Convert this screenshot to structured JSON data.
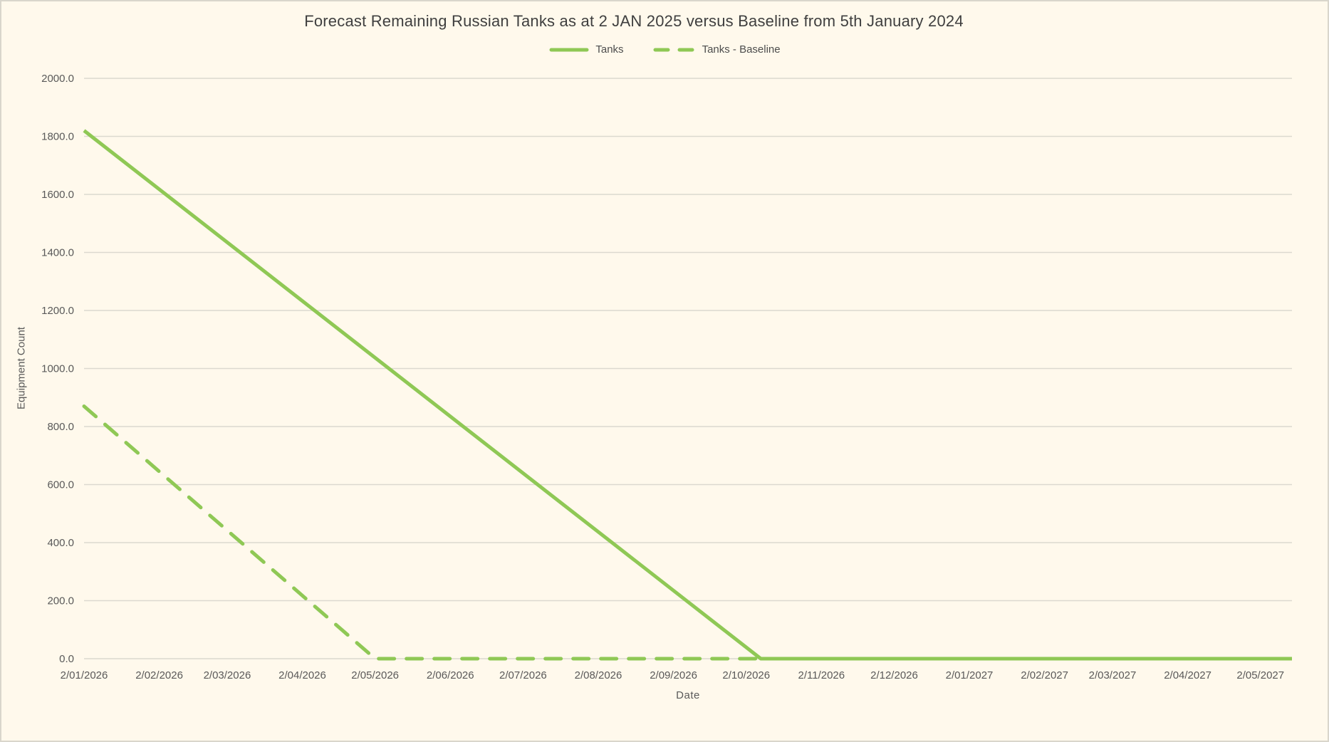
{
  "window": {
    "background_color": "#FFF9EC",
    "border_color": "#D9D6CC",
    "accent_color": "#8FC855",
    "gridline_color": "#DCD9CF",
    "text_color": "#595959"
  },
  "chart_data": {
    "type": "line",
    "title": "Forecast Remaining Russian Tanks as at 2 JAN 2025 versus Baseline from 5th January 2024",
    "xlabel": "Date",
    "ylabel": "Equipment Count",
    "ylim": [
      0,
      2000
    ],
    "ytick_step": 200,
    "ytick_labels": [
      "0.0",
      "200.0",
      "400.0",
      "600.0",
      "800.0",
      "1000.0",
      "1200.0",
      "1400.0",
      "1600.0",
      "1800.0",
      "2000.0"
    ],
    "xtick_labels": [
      "2/01/2026",
      "2/02/2026",
      "2/03/2026",
      "2/04/2026",
      "2/05/2026",
      "2/06/2026",
      "2/07/2026",
      "2/08/2026",
      "2/09/2026",
      "2/10/2026",
      "2/11/2026",
      "2/12/2026",
      "2/01/2027",
      "2/02/2027",
      "2/03/2027",
      "2/04/2027",
      "2/05/2027"
    ],
    "xtick_positions_days": [
      0,
      31,
      59,
      90,
      120,
      151,
      181,
      212,
      243,
      273,
      304,
      334,
      365,
      396,
      424,
      455,
      485
    ],
    "x_domain_days": [
      0,
      498
    ],
    "grid": true,
    "legend_position": "top-center",
    "series": [
      {
        "name": "Tanks",
        "line_style": "solid",
        "color": "#8FC855",
        "points": [
          {
            "day": 0,
            "value": 1820
          },
          {
            "day": 279,
            "value": 0
          },
          {
            "day": 498,
            "value": 0
          }
        ]
      },
      {
        "name": "Tanks - Baseline",
        "line_style": "dashed",
        "color": "#8FC855",
        "points": [
          {
            "day": 0,
            "value": 870
          },
          {
            "day": 120,
            "value": 0
          },
          {
            "day": 498,
            "value": 0
          }
        ]
      }
    ]
  }
}
